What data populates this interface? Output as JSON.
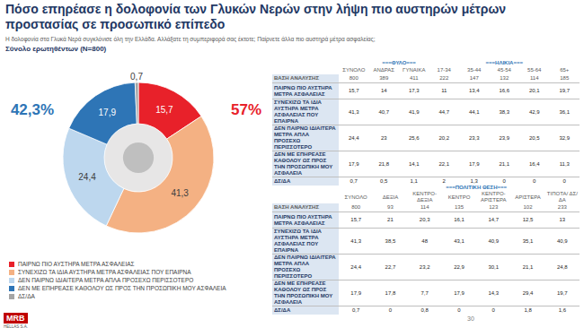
{
  "chart_data": {
    "type": "pie",
    "title": "Πόσο επηρέασε η δολοφονία των Γλυκών Νερών στην λήψη πιο αυστηρών μέτρων προστασίας σε προσωπικό επίπεδο",
    "subtitle": "Η δολοφονία στα Γλυκά Νερά συγκλόνισε όλη την Ελλάδα. Αλλάξατε τη συμπεριφορά σας έκτοτε; Παίρνετε άλλα πιο αυστηρά μέτρα ασφαλείας;",
    "base_label": "Σύνολο ερωτηθέντων (N=800)",
    "categories": [
      "ΠΑΙΡΝΩ ΠΙΟ ΑΥΣΤΗΡΑ ΜΕΤΡΑ ΑΣΦΑΛΕΙΑΣ",
      "ΣΥΝΕΧΙΖΩ ΤΑ ΙΔΙΑ ΑΥΣΤΗΡΑ ΜΕΤΡΑ ΑΣΦΑΛΕΙΑΣ ΠΟΥ ΕΠΑΙΡΝΑ",
      "ΔΕΝ ΠΑΙΡΝΩ ΙΔΙΑΙΤΕΡΑ ΜΕΤΡΑ ΑΠΛΑ ΠΡΟΣΕΧΩ ΠΕΡΙΣΣΟΤΕΡΟ",
      "ΔΕΝ ΜΕ ΕΠΗΡΕΑΣΕ ΚΑΘΟΛΟΥ ΩΣ ΠΡΟΣ ΤΗΝ ΠΡΟΣΩΠΙΚΗ ΜΟΥ ΑΣΦΑΛΕΙΑ",
      "ΔΣ/ΔΑ"
    ],
    "values": [
      15.7,
      41.3,
      24.4,
      17.9,
      0.7
    ],
    "value_labels": [
      "15,7",
      "41,3",
      "24,4",
      "17,9",
      "0,7"
    ],
    "colors": [
      "#e8212a",
      "#f4b183",
      "#bdd7ee",
      "#2e75b6",
      "#a5a5a5"
    ],
    "data_labels": true,
    "legend": "bottom-left",
    "annotations": [
      {
        "text": "57%",
        "color": "#e8212a"
      },
      {
        "text": "42,3%",
        "color": "#2e75b6"
      }
    ]
  },
  "tables": [
    {
      "groups": [
        {
          "label": "===ΦΥΛΟ===",
          "columns": [
            "ΑΝΔΡΑΣ",
            "ΓΥΝΑΙΚΑ"
          ]
        },
        {
          "label": "===ΗΛΙΚΙΑ===",
          "columns": [
            "17-34",
            "35-44",
            "45-54",
            "55-64",
            "65+"
          ]
        }
      ],
      "columns": [
        "ΣΥΝΟΛΟ",
        "ΑΝΔΡΑΣ",
        "ΓΥΝΑΙΚΑ",
        "17-34",
        "35-44",
        "45-54",
        "55-64",
        "65+"
      ],
      "base": {
        "label": "ΒΑΣΗ ΑΝΑΛΥΣΗΣ",
        "values": [
          "800",
          "389",
          "411",
          "222",
          "147",
          "132",
          "114",
          "185"
        ]
      },
      "rows": [
        {
          "label": "ΠΑΙΡΝΩ ΠΙΟ ΑΥΣΤΗΡΑ ΜΕΤΡΑ ΑΣΦΑΛΕΙΑΣ",
          "values": [
            "15,7",
            "14",
            "17,3",
            "11",
            "13,4",
            "16,6",
            "20,1",
            "19,7"
          ]
        },
        {
          "label": "ΣΥΝΕΧΙΖΩ ΤΑ ΙΔΙΑ ΑΥΣΤΗΡΑ ΜΕΤΡΑ ΑΣΦΑΛΕΙΑΣ ΠΟΥ ΕΠΑΙΡΝΑ",
          "values": [
            "41,3",
            "40,7",
            "41,9",
            "44,7",
            "44,1",
            "38,3",
            "42,9",
            "36,1"
          ]
        },
        {
          "label": "ΔΕΝ ΠΑΙΡΝΩ ΙΔΙΑΙΤΕΡΑ ΜΕΤΡΑ ΑΠΛΑ ΠΡΟΣΕΧΩ ΠΕΡΙΣΣΟΤΕΡΟ",
          "values": [
            "24,4",
            "23",
            "25,6",
            "20,2",
            "23,3",
            "23,9",
            "20,5",
            "32,9"
          ]
        },
        {
          "label": "ΔΕΝ ΜΕ ΕΠΗΡΕΑΣΕ ΚΑΘΟΛΟΥ ΩΣ ΠΡΟΣ ΤΗΝ ΠΡΟΣΩΠΙΚΗ ΜΟΥ ΑΣΦΑΛΕΙΑ",
          "values": [
            "17,9",
            "21,8",
            "14,1",
            "22,1",
            "17,9",
            "21,1",
            "16,4",
            "11,3"
          ]
        },
        {
          "label": "ΔΣ/ΔΑ",
          "values": [
            "0,7",
            "0,5",
            "1,1",
            "2",
            "1,3",
            "0",
            "0",
            "0"
          ]
        }
      ]
    },
    {
      "groups": [
        {
          "label": "===ΠΟΛΙΤΙΚΗ ΘΕΣΗ===",
          "columns": [
            "ΔΕΞΙΑ",
            "ΚΕΝΤΡΟ-ΔΕΞΙΑ",
            "ΚΕΝΤΡΟ",
            "ΚΕΝΤΡΟ-ΑΡΙΣΤΕΡΑ",
            "ΑΡΙΣΤΕΡΑ",
            "ΤΙΠΟΤΑ/ ΔΣ/ΔΑ"
          ]
        }
      ],
      "columns": [
        "ΣΥΝΟΛΟ",
        "ΔΕΞΙΑ",
        "ΚΕΝΤΡΟ-ΔΕΞΙΑ",
        "ΚΕΝΤΡΟ",
        "ΚΕΝΤΡΟ-ΑΡΙΣΤΕΡΑ",
        "ΑΡΙΣΤΕΡΑ",
        "ΤΙΠΟΤΑ/ ΔΣ/ΔΑ"
      ],
      "base": {
        "label": "ΒΑΣΗ ΑΝΑΛΥΣΗΣ",
        "values": [
          "800",
          "93",
          "114",
          "135",
          "123",
          "102",
          "233"
        ]
      },
      "rows": [
        {
          "label": "ΠΑΙΡΝΩ ΠΙΟ ΑΥΣΤΗΡΑ ΜΕΤΡΑ ΑΣΦΑΛΕΙΑΣ",
          "values": [
            "15,7",
            "21",
            "20,3",
            "16,1",
            "14,7",
            "12,5",
            "13"
          ]
        },
        {
          "label": "ΣΥΝΕΧΙΖΩ ΤΑ ΙΔΙΑ ΑΥΣΤΗΡΑ ΜΕΤΡΑ ΑΣΦΑΛΕΙΑΣ ΠΟΥ ΕΠΑΙΡΝΑ",
          "values": [
            "41,3",
            "38,5",
            "48",
            "43,1",
            "40,9",
            "35,1",
            "40,9"
          ]
        },
        {
          "label": "ΔΕΝ ΠΑΙΡΝΩ ΙΔΙΑΙΤΕΡΑ ΜΕΤΡΑ ΑΠΛΑ ΠΡΟΣΕΧΩ ΠΕΡΙΣΣΟΤΕΡΟ",
          "values": [
            "24,4",
            "22,7",
            "23,2",
            "22,9",
            "30,1",
            "21,1",
            "24,8"
          ]
        },
        {
          "label": "ΔΕΝ ΜΕ ΕΠΗΡΕΑΣΕ ΚΑΘΟΛΟΥ ΩΣ ΠΡΟΣ ΤΗΝ ΠΡΟΣΩΠΙΚΗ ΜΟΥ ΑΣΦΑΛΕΙΑ",
          "values": [
            "17,9",
            "17,8",
            "7,7",
            "17,9",
            "14,3",
            "29,4",
            "19,7"
          ]
        },
        {
          "label": "ΔΣ/ΔΑ",
          "values": [
            "0,7",
            "0",
            "0,8",
            "0",
            "0",
            "1,8",
            "1,6"
          ]
        }
      ]
    }
  ],
  "footer": {
    "logo": "MRB",
    "logo_sub": "HELLAS S.A.",
    "page": "30"
  }
}
